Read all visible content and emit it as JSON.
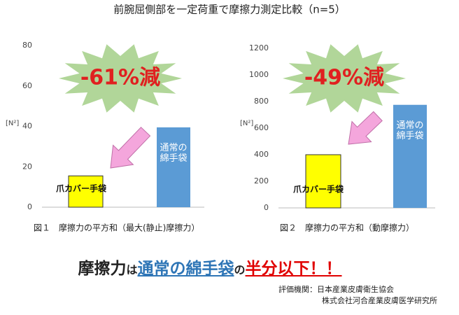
{
  "title": "前腕屈側部を一定荷重で摩擦力測定比較（n=5）",
  "chart_data": [
    {
      "type": "bar",
      "ylabel": "[N²]",
      "annotation": "-61%減",
      "caption": "図１　摩擦力の平方和（最大(静止)摩擦力）",
      "categories": [
        "爪カバー手袋",
        "通常の綿手袋"
      ],
      "values": [
        15.5,
        39.5
      ],
      "colors": [
        "#ffff00",
        "#5b9bd5"
      ],
      "ylim": [
        0,
        80
      ],
      "yticks": [
        0,
        20,
        40,
        60,
        80
      ],
      "grid": false
    },
    {
      "type": "bar",
      "ylabel": "[N²]",
      "annotation": "-49%減",
      "caption": "図２　摩擦力の平方和（動摩擦力）",
      "categories": [
        "爪カバー手袋",
        "通常の綿手袋"
      ],
      "values": [
        400,
        775
      ],
      "colors": [
        "#ffff00",
        "#5b9bd5"
      ],
      "ylim": [
        0,
        1200
      ],
      "yticks": [
        0,
        200,
        400,
        600,
        800,
        1000,
        1200
      ],
      "grid": false
    }
  ],
  "slogan": [
    "摩擦力",
    "は",
    "通常の綿手袋",
    "の",
    "半分以下！！"
  ],
  "credit": [
    "評価機関：日本産業皮膚衛生協会",
    "株式会社河合産業皮膚医学研究所"
  ]
}
